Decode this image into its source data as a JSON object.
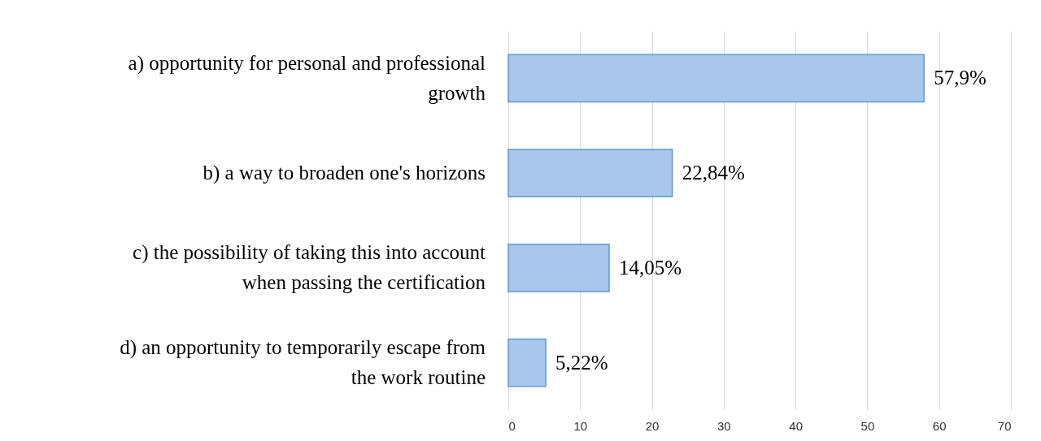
{
  "chart_data": {
    "type": "bar",
    "orientation": "horizontal",
    "categories": [
      "a) opportunity for personal and professional growth",
      "b) a way to broaden one's horizons",
      "c) the possibility of taking this into account when passing the certification",
      "d) an opportunity to temporarily escape from the work routine"
    ],
    "values": [
      57.9,
      22.84,
      14.05,
      5.22
    ],
    "value_labels": [
      "57,9%",
      "22,84%",
      "14,05%",
      "5,22%"
    ],
    "color": "#aac6ea",
    "xlim": [
      0,
      70
    ],
    "xticks": [
      0,
      10,
      20,
      30,
      40,
      50,
      60,
      70
    ],
    "grid": "x"
  }
}
